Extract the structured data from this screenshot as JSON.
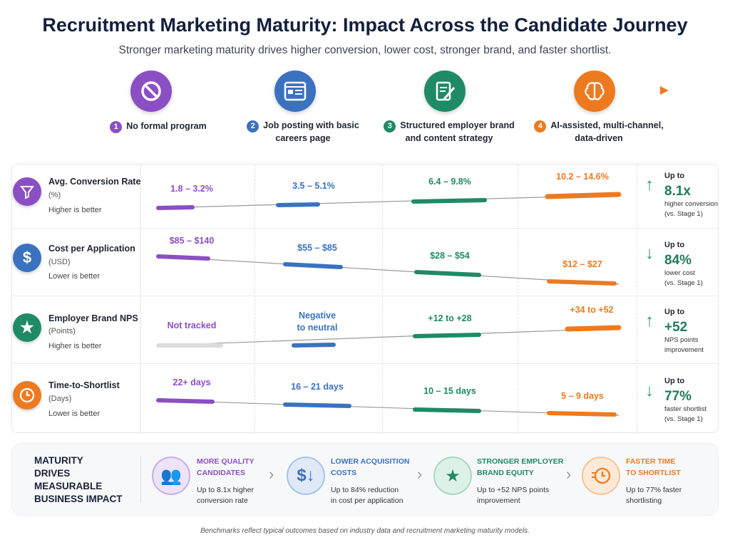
{
  "title": "Recruitment Marketing Maturity: Impact Across the Candidate Journey",
  "subtitle": "Stronger marketing maturity drives higher conversion, lower cost, stronger brand, and faster shortlist.",
  "colors": {
    "stage1": "#8b4fc4",
    "stage2": "#3a72c0",
    "stage3": "#1f8a66",
    "stage4": "#ee7a1f",
    "positive": "#1f7d5c"
  },
  "stages": [
    {
      "num": "1",
      "label": "No formal program",
      "icon": "no-entry-icon"
    },
    {
      "num": "2",
      "label": "Job posting with basic careers page",
      "icon": "browser-page-icon"
    },
    {
      "num": "3",
      "label": "Structured employer brand and content strategy",
      "icon": "document-edit-icon"
    },
    {
      "num": "4",
      "label": "AI-assisted, multi-channel, data-driven",
      "icon": "brain-icon"
    }
  ],
  "metrics": [
    {
      "name": "Avg. Conversion Rate",
      "unit": "(%)",
      "direction": "Higher is better",
      "icon": "funnel-icon",
      "values": [
        "1.8 – 3.2%",
        "3.5 – 5.1%",
        "6.4 – 9.8%",
        "10.2 – 14.6%"
      ],
      "impact": {
        "prefix": "Up to",
        "value": "8.1x",
        "line1": "higher conversion",
        "line2": "(vs. Stage 1)",
        "trend": "up"
      }
    },
    {
      "name": "Cost per Application",
      "unit": "(USD)",
      "direction": "Lower is better",
      "icon": "dollar-icon",
      "values": [
        "$85 – $140",
        "$55 – $85",
        "$28 – $54",
        "$12 – $27"
      ],
      "impact": {
        "prefix": "Up to",
        "value": "84%",
        "line1": "lower cost",
        "line2": "(vs. Stage 1)",
        "trend": "down"
      }
    },
    {
      "name": "Employer Brand NPS",
      "unit": "(Points)",
      "direction": "Higher is better",
      "icon": "star-icon",
      "values": [
        "Not tracked",
        "Negative to neutral",
        "+12 to +28",
        "+34 to +52"
      ],
      "values_lines": [
        "Negative",
        "to neutral"
      ],
      "impact": {
        "prefix": "Up to",
        "value": "+52",
        "line1": "NPS points",
        "line2": "improvement",
        "trend": "up"
      }
    },
    {
      "name": "Time-to-Shortlist",
      "unit": "(Days)",
      "direction": "Lower is better",
      "icon": "clock-icon",
      "values": [
        "22+ days",
        "16 – 21 days",
        "10 – 15 days",
        "5 – 9 days"
      ],
      "impact": {
        "prefix": "Up to",
        "value": "77%",
        "line1": "faster shortlist",
        "line2": "(vs. Stage 1)",
        "trend": "down"
      }
    }
  ],
  "summary": {
    "title_lines": [
      "MATURITY",
      "DRIVES",
      "MEASURABLE",
      "BUSINESS IMPACT"
    ],
    "items": [
      {
        "title1": "MORE QUALITY",
        "title2": "CANDIDATES",
        "text1": "Up to 8.1x higher",
        "text2": "conversion rate",
        "icon": "people-icon"
      },
      {
        "title1": "LOWER ACQUISITION",
        "title2": "COSTS",
        "text1": "Up to 84% reduction",
        "text2": "in cost per application",
        "icon": "dollar-down-icon"
      },
      {
        "title1": "STRONGER EMPLOYER",
        "title2": "BRAND EQUITY",
        "text1": "Up to +52 NPS points",
        "text2": "improvement",
        "icon": "star-badge-icon"
      },
      {
        "title1": "FASTER TIME",
        "title2": "TO SHORTLIST",
        "text1": "Up to 77% faster",
        "text2": "shortlisting",
        "icon": "fast-clock-icon"
      }
    ]
  },
  "footer": "Benchmarks reflect typical outcomes based on industry data and recruitment marketing maturity models."
}
